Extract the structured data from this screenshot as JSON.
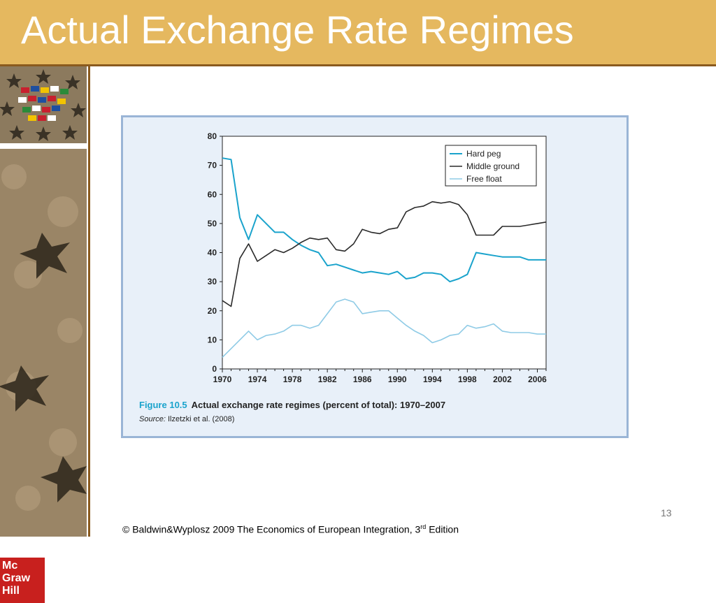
{
  "slide": {
    "title": "Actual Exchange Rate Regimes",
    "page_number": "13",
    "footer_prefix": "© Baldwin&Wyplosz 2009 The Economics of European Integration, 3",
    "footer_sup": "rd",
    "footer_suffix": " Edition",
    "logo_lines": [
      "Mc",
      "Graw",
      "Hill"
    ]
  },
  "figure": {
    "number": "Figure 10.5",
    "caption": "Actual exchange rate regimes (percent of total): 1970–2007",
    "source_label": "Source:",
    "source_text": "Ilzetzki et al. (2008)"
  },
  "colors": {
    "title_bar": "#e5b85f",
    "hard_peg": "#1aa3cc",
    "middle_ground": "#2a2a2a",
    "free_float": "#8fcbe6",
    "frame_bg": "#e8f0f9",
    "frame_border": "#9ab5d6"
  },
  "chart_data": {
    "type": "line",
    "xlabel": "",
    "ylabel": "",
    "xlim": [
      1970,
      2007
    ],
    "ylim": [
      0,
      80
    ],
    "y_ticks": [
      0,
      10,
      20,
      30,
      40,
      50,
      60,
      70,
      80
    ],
    "x_ticks": [
      1970,
      1974,
      1978,
      1982,
      1986,
      1990,
      1994,
      1998,
      2002,
      2006
    ],
    "grid": false,
    "legend_position": "top-right",
    "x": [
      1970,
      1971,
      1972,
      1973,
      1974,
      1975,
      1976,
      1977,
      1978,
      1979,
      1980,
      1981,
      1982,
      1983,
      1984,
      1985,
      1986,
      1987,
      1988,
      1989,
      1990,
      1991,
      1992,
      1993,
      1994,
      1995,
      1996,
      1997,
      1998,
      1999,
      2000,
      2001,
      2002,
      2003,
      2004,
      2005,
      2006,
      2007
    ],
    "series": [
      {
        "name": "Hard peg",
        "values": [
          72.5,
          72,
          52,
          44.5,
          53,
          50,
          47,
          47,
          44.5,
          42.5,
          41,
          40,
          35.5,
          36,
          35,
          34,
          33,
          33.5,
          33,
          32.5,
          33.5,
          31,
          31.5,
          33,
          33,
          32.5,
          30,
          31,
          32.5,
          40,
          39.5,
          39,
          38.5,
          38.5,
          38.5,
          37.5,
          37.5,
          37.5
        ]
      },
      {
        "name": "Middle ground",
        "values": [
          23.5,
          21.5,
          38,
          43,
          37,
          39,
          41,
          40,
          41.5,
          43.5,
          45,
          44.5,
          45,
          41,
          40.5,
          43,
          48,
          47,
          46.5,
          48,
          48.5,
          54,
          55.5,
          56,
          57.5,
          57,
          57.5,
          56.5,
          53,
          46,
          46,
          46,
          49,
          49,
          49,
          49.5,
          50,
          50.5
        ]
      },
      {
        "name": "Free float",
        "values": [
          4,
          7,
          10,
          13,
          10,
          11.5,
          12,
          13,
          15,
          15,
          14,
          15,
          19,
          23,
          24,
          23,
          19,
          19.5,
          20,
          20,
          17.5,
          15,
          13,
          11.5,
          9,
          10,
          11.5,
          12,
          15,
          14,
          14.5,
          15.5,
          13,
          12.5,
          12.5,
          12.5,
          12,
          12
        ]
      }
    ]
  }
}
